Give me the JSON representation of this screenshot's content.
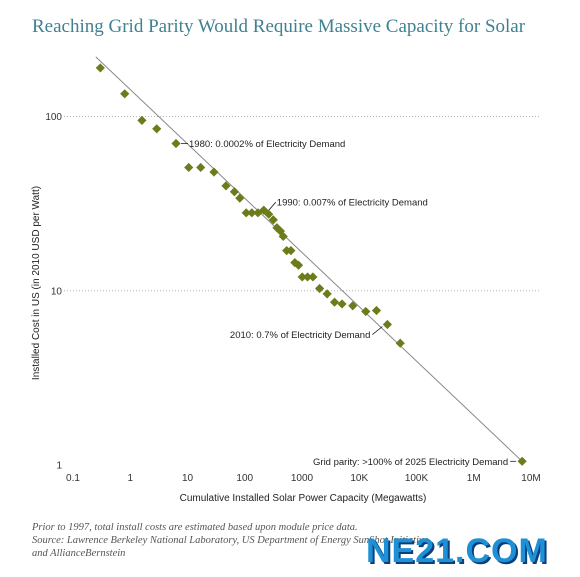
{
  "chart_data": {
    "type": "scatter",
    "title": "Reaching Grid Parity Would Require Massive Capacity for Solar",
    "xlabel": "Cumulative Installed Solar Power Capacity (Megawatts)",
    "ylabel": "Installed Cost in US (in 2010 USD per Watt)",
    "x_scale": "log",
    "y_scale": "log",
    "xlim": [
      0.1,
      10000000
    ],
    "ylim": [
      1,
      300
    ],
    "x_ticks": [
      {
        "value": 0.1,
        "label": "0.1"
      },
      {
        "value": 1,
        "label": "1"
      },
      {
        "value": 10,
        "label": "10"
      },
      {
        "value": 100,
        "label": "100"
      },
      {
        "value": 1000,
        "label": "1000"
      },
      {
        "value": 10000,
        "label": "10K"
      },
      {
        "value": 100000,
        "label": "100K"
      },
      {
        "value": 1000000,
        "label": "1M"
      },
      {
        "value": 10000000,
        "label": "10M"
      }
    ],
    "y_ticks": [
      {
        "value": 1,
        "label": "1"
      },
      {
        "value": 10,
        "label": "10"
      },
      {
        "value": 100,
        "label": "100"
      }
    ],
    "grid": "horizontal dotted",
    "marker_color": "#6b7d1a",
    "trendline_color": "#888888",
    "points": [
      {
        "x": 0.3,
        "y": 190
      },
      {
        "x": 0.8,
        "y": 135
      },
      {
        "x": 1.6,
        "y": 95
      },
      {
        "x": 2.9,
        "y": 85
      },
      {
        "x": 6.3,
        "y": 70
      },
      {
        "x": 10.5,
        "y": 51
      },
      {
        "x": 17,
        "y": 51
      },
      {
        "x": 29,
        "y": 48
      },
      {
        "x": 47,
        "y": 40
      },
      {
        "x": 66,
        "y": 37
      },
      {
        "x": 82,
        "y": 34
      },
      {
        "x": 106,
        "y": 28
      },
      {
        "x": 133,
        "y": 28
      },
      {
        "x": 170,
        "y": 28
      },
      {
        "x": 215,
        "y": 29
      },
      {
        "x": 262,
        "y": 27.5
      },
      {
        "x": 315,
        "y": 25.5
      },
      {
        "x": 365,
        "y": 23
      },
      {
        "x": 420,
        "y": 22
      },
      {
        "x": 470,
        "y": 20.5
      },
      {
        "x": 540,
        "y": 17
      },
      {
        "x": 640,
        "y": 17
      },
      {
        "x": 750,
        "y": 14.5
      },
      {
        "x": 870,
        "y": 14
      },
      {
        "x": 1010,
        "y": 12
      },
      {
        "x": 1250,
        "y": 12
      },
      {
        "x": 1550,
        "y": 12
      },
      {
        "x": 2030,
        "y": 10.3
      },
      {
        "x": 2750,
        "y": 9.6
      },
      {
        "x": 3700,
        "y": 8.6
      },
      {
        "x": 5000,
        "y": 8.4
      },
      {
        "x": 7700,
        "y": 8.2
      },
      {
        "x": 13000,
        "y": 7.6
      },
      {
        "x": 20000,
        "y": 7.7
      },
      {
        "x": 31000,
        "y": 6.4
      },
      {
        "x": 52000,
        "y": 5.0
      },
      {
        "x": 7000000,
        "y": 1.05
      }
    ],
    "trendline": [
      {
        "x": 0.25,
        "y": 220
      },
      {
        "x": 7000000,
        "y": 1.05
      }
    ],
    "annotations": [
      {
        "text": "1980: 0.0002% of Electricity Demand",
        "x": 6.3,
        "y": 70,
        "side": "right"
      },
      {
        "text": "1990: 0.007% of Electricity Demand",
        "x": 215,
        "y": 29,
        "side": "right"
      },
      {
        "text": "2010: 0.7% of Electricity Demand",
        "x": 31000,
        "y": 6.4,
        "side": "left"
      },
      {
        "text": "Grid parity: >100% of 2025 Electricity Demand",
        "x": 7000000,
        "y": 1.05,
        "side": "left"
      }
    ]
  },
  "footnote": {
    "line1": "Prior to 1997, total install costs are estimated based upon module price data.",
    "line2": "Source: Lawrence Berkeley National Laboratory, US Department of Energy SunShot Initiative",
    "line3": "and AllianceBernstein"
  },
  "watermark": {
    "text": "NE21.COM"
  }
}
